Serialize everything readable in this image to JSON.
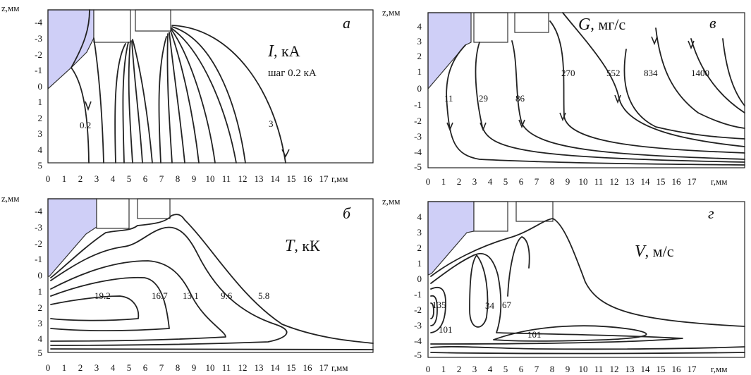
{
  "colors": {
    "electrode": "#cfcff7",
    "line": "#222222"
  },
  "panels": [
    {
      "key": "a",
      "letter": "a",
      "symbol": "I",
      "unit": ", кА",
      "step": "шаг 0.2 кА",
      "ylabel": "z,мм",
      "xlabel": "r,мм",
      "y_ticks": [
        "-4",
        "-3",
        "-2",
        "-1",
        "0",
        "1",
        "2",
        "3",
        "4",
        "5"
      ],
      "x_ticks": [
        "0",
        "1",
        "2",
        "3",
        "4",
        "5",
        "6",
        "7",
        "8",
        "9",
        "10",
        "11",
        "12",
        "13",
        "14",
        "15",
        "16",
        "17"
      ],
      "labels": [
        "0.2",
        "3"
      ]
    },
    {
      "key": "v",
      "letter": "в",
      "symbol": "G",
      "unit": ", мг/с",
      "step": "",
      "ylabel": "z,мм",
      "xlabel": "r,мм",
      "y_ticks": [
        "4",
        "3",
        "2",
        "1",
        "0",
        "-1",
        "-2",
        "-3",
        "-4",
        "-5"
      ],
      "x_ticks": [
        "0",
        "1",
        "2",
        "3",
        "4",
        "5",
        "6",
        "7",
        "8",
        "9",
        "10",
        "11",
        "12",
        "13",
        "14",
        "15",
        "16",
        "17"
      ],
      "labels": [
        "11",
        "29",
        "86",
        "270",
        "552",
        "834",
        "1400"
      ]
    },
    {
      "key": "b",
      "letter": "б",
      "symbol": "T",
      "unit": ", кК",
      "step": "",
      "ylabel": "z,мм",
      "xlabel": "r,мм",
      "y_ticks": [
        "-4",
        "-3",
        "-2",
        "-1",
        "0",
        "1",
        "2",
        "3",
        "4",
        "5"
      ],
      "x_ticks": [
        "0",
        "1",
        "2",
        "3",
        "4",
        "5",
        "6",
        "7",
        "8",
        "9",
        "10",
        "11",
        "12",
        "13",
        "14",
        "15",
        "16",
        "17"
      ],
      "labels": [
        "19.2",
        "16.7",
        "13.1",
        "9.6",
        "5.8"
      ]
    },
    {
      "key": "g",
      "letter": "г",
      "symbol": "V",
      "unit": ", м/с",
      "step": "",
      "ylabel": "z,мм",
      "xlabel": "r,мм",
      "y_ticks": [
        "4",
        "3",
        "2",
        "1",
        "0",
        "-1",
        "-2",
        "-3",
        "-4",
        "-5"
      ],
      "x_ticks": [
        "0",
        "1",
        "2",
        "3",
        "4",
        "5",
        "6",
        "7",
        "8",
        "9",
        "10",
        "11",
        "12",
        "13",
        "14",
        "15",
        "16",
        "17"
      ],
      "labels": [
        "135",
        "34",
        "67",
        "101",
        "101"
      ]
    }
  ],
  "chart_data": [
    {
      "type": "contour",
      "panel": "a",
      "xlabel": "r,мм",
      "ylabel": "z,мм",
      "xlim": [
        0,
        18
      ],
      "ylim": [
        -4.5,
        5
      ],
      "contour_labels": [
        "0.2",
        "3"
      ],
      "note": "шаг 0.2 кА"
    },
    {
      "type": "contour",
      "panel": "в",
      "xlabel": "r,мм",
      "ylabel": "z,мм",
      "xlim": [
        0,
        18
      ],
      "ylim": [
        -5,
        4.5
      ],
      "contour_labels": [
        "11",
        "29",
        "86",
        "270",
        "552",
        "834",
        "1400"
      ]
    },
    {
      "type": "contour",
      "panel": "б",
      "xlabel": "r,мм",
      "ylabel": "z,мм",
      "xlim": [
        0,
        18
      ],
      "ylim": [
        -4.5,
        5
      ],
      "contour_labels": [
        "19.2",
        "16.7",
        "13.1",
        "9.6",
        "5.8"
      ]
    },
    {
      "type": "contour",
      "panel": "г",
      "xlabel": "r,мм",
      "ylabel": "z,мм",
      "xlim": [
        0,
        18
      ],
      "ylim": [
        -5,
        4.5
      ],
      "contour_labels": [
        "135",
        "34",
        "67",
        "101",
        "101"
      ]
    }
  ]
}
